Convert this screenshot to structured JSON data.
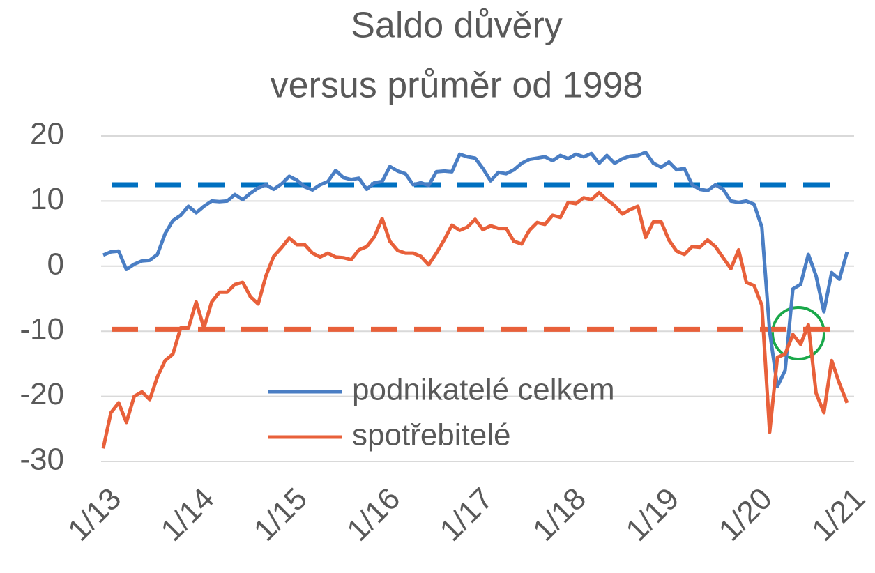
{
  "chart_data": {
    "type": "line",
    "title": [
      "Saldo důvěry",
      "versus průměr od 1998"
    ],
    "categories": [
      "1/13",
      null,
      null,
      null,
      null,
      null,
      null,
      null,
      null,
      null,
      null,
      null,
      "1/14",
      null,
      null,
      null,
      null,
      null,
      null,
      null,
      null,
      null,
      null,
      null,
      "1/15",
      null,
      null,
      null,
      null,
      null,
      null,
      null,
      null,
      null,
      null,
      null,
      "1/16",
      null,
      null,
      null,
      null,
      null,
      null,
      null,
      null,
      null,
      null,
      null,
      "1/17",
      null,
      null,
      null,
      null,
      null,
      null,
      null,
      null,
      null,
      null,
      null,
      "1/18",
      null,
      null,
      null,
      null,
      null,
      null,
      null,
      null,
      null,
      null,
      null,
      "1/19",
      null,
      null,
      null,
      null,
      null,
      null,
      null,
      null,
      null,
      null,
      null,
      "1/20",
      null,
      null,
      null,
      null,
      null,
      null,
      null,
      null,
      null,
      null,
      null,
      "1/21"
    ],
    "series": [
      {
        "name": "podnikatelé celkem",
        "color": "#4a7ec4",
        "values": [
          1.7,
          2.2,
          2.3,
          -0.5,
          0.3,
          0.8,
          0.9,
          1.8,
          5,
          7,
          7.8,
          9.2,
          8.2,
          9.2,
          10,
          9.9,
          10,
          11,
          10.2,
          11.2,
          12,
          12.5,
          11.8,
          12.6,
          13.8,
          13.2,
          12.2,
          11.7,
          12.5,
          13,
          14.7,
          13.6,
          13.3,
          13.5,
          11.8,
          12.8,
          13,
          15.3,
          14.6,
          14.2,
          12.5,
          12.8,
          12.4,
          14.5,
          14.6,
          14.5,
          17.2,
          16.8,
          16.6,
          15,
          13.1,
          14.4,
          14.2,
          14.8,
          15.8,
          16.4,
          16.6,
          16.8,
          16.2,
          17,
          16.5,
          17.2,
          16.8,
          17.3,
          15.8,
          17,
          15.8,
          16.5,
          16.9,
          17,
          17.5,
          15.8,
          15.2,
          16,
          14.8,
          15,
          12.5,
          11.8,
          11.6,
          12.5,
          11.8,
          10,
          9.8,
          10,
          9.5,
          6,
          -10,
          -18.5,
          -16,
          -3.5,
          -2.8,
          1.8,
          -1.5,
          -7,
          -1,
          -2,
          2.2
        ]
      },
      {
        "name": "spotřebitelé",
        "color": "#e8603a",
        "values": [
          -28,
          -22.5,
          -21,
          -24,
          -20,
          -19.3,
          -20.5,
          -17,
          -14.5,
          -13.5,
          -9.5,
          -9.5,
          -5.5,
          -9.5,
          -5.5,
          -4,
          -4,
          -2.8,
          -2.5,
          -4.7,
          -5.8,
          -1.5,
          1.5,
          2.8,
          4.3,
          3.3,
          3.3,
          2,
          1.4,
          2,
          1.4,
          1.3,
          1,
          2.5,
          3,
          4.5,
          7.3,
          3.8,
          2.4,
          2,
          2,
          1.5,
          0.2,
          2,
          4,
          6.3,
          5.5,
          6,
          7.2,
          5.6,
          6.2,
          5.8,
          5.8,
          3.8,
          3.4,
          5.5,
          6.7,
          6.4,
          7.8,
          7.5,
          9.8,
          9.6,
          10.5,
          10.2,
          11.3,
          10.2,
          9.3,
          8,
          8.7,
          9.2,
          4.4,
          6.8,
          6.8,
          4,
          2.3,
          1.8,
          3,
          2.9,
          4,
          3,
          1.3,
          -0.4,
          2.5,
          -2.5,
          -3,
          -6,
          -25.5,
          -14,
          -13.5,
          -10.5,
          -12,
          -9,
          -19.5,
          -22.5,
          -14.5,
          -18,
          -21
        ]
      }
    ],
    "reference_lines": [
      {
        "value": 12.5,
        "color": "#0070c0"
      },
      {
        "value": -9.7,
        "color": "#e8603a"
      }
    ],
    "ylim": [
      -30,
      20
    ],
    "yticks": [
      -30,
      -20,
      -10,
      0,
      10,
      20
    ],
    "grid": true
  }
}
